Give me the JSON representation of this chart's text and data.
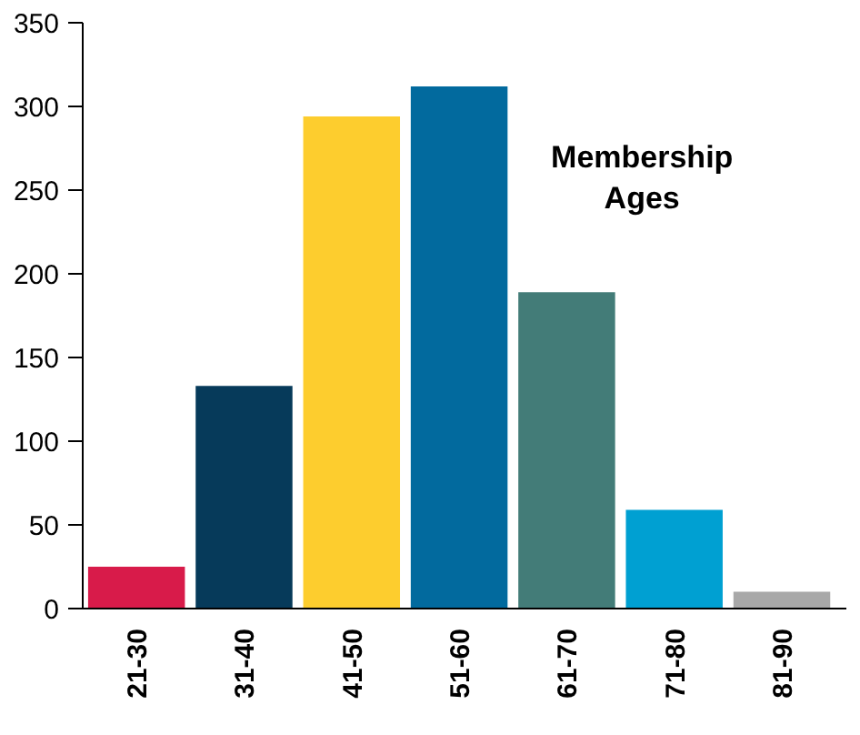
{
  "chart_data": {
    "type": "bar",
    "title": "Membership\nAges",
    "categories": [
      "21-30",
      "31-40",
      "41-50",
      "51-60",
      "61-70",
      "71-80",
      "81-90"
    ],
    "values": [
      25,
      133,
      294,
      312,
      189,
      59,
      10
    ],
    "colors": [
      "#d81b4a",
      "#063a5a",
      "#fdcd2e",
      "#026a9e",
      "#437c78",
      "#00a0d2",
      "#a8a8a8"
    ],
    "ylim": [
      0,
      350
    ],
    "yticks": [
      0,
      50,
      100,
      150,
      200,
      250,
      300,
      350
    ]
  }
}
